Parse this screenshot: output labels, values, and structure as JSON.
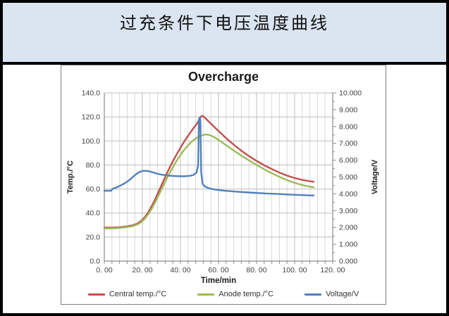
{
  "header": {
    "title": "过充条件下电压温度曲线"
  },
  "chart_data": {
    "type": "line",
    "title": "Overcharge",
    "legend_position": "bottom",
    "grid": {
      "horizontal_major": true,
      "vertical_major": true,
      "vertical_minor": true
    },
    "x_axis": {
      "label": "Time/min",
      "min": 0,
      "max": 120,
      "major_step": 20,
      "minor_step": 4,
      "tick_labels": [
        "0. 00",
        "20. 00",
        "40. 00",
        "60. 00",
        "80. 00",
        "100. 00",
        "120. 00"
      ]
    },
    "y_axis_left": {
      "label": "Temp./°C",
      "min": 0,
      "max": 140,
      "major_step": 20,
      "tick_labels": [
        "0.0",
        "20.0",
        "40.0",
        "60.0",
        "80.0",
        "100.0",
        "120.0",
        "140.0"
      ]
    },
    "y_axis_right": {
      "label": "Voltage/V",
      "min": 0,
      "max": 10,
      "major_step": 1,
      "minor_step": 0.5,
      "tick_labels": [
        "0.000",
        "1.000",
        "2.000",
        "3.000",
        "4.000",
        "5.000",
        "6.000",
        "7.000",
        "8.000",
        "9.000",
        "10.000"
      ]
    },
    "series": [
      {
        "name": "Central temp./°C",
        "axis": "left",
        "color": "#C0504D",
        "points": [
          [
            0,
            27.8
          ],
          [
            4,
            27.8
          ],
          [
            8,
            28.2
          ],
          [
            12,
            28.9
          ],
          [
            15,
            29.8
          ],
          [
            17,
            31
          ],
          [
            19,
            33
          ],
          [
            21,
            36
          ],
          [
            23,
            40.5
          ],
          [
            25,
            46
          ],
          [
            27,
            52.5
          ],
          [
            29,
            59.5
          ],
          [
            31,
            66.5
          ],
          [
            33,
            73.5
          ],
          [
            35,
            80
          ],
          [
            37,
            86
          ],
          [
            39,
            91.5
          ],
          [
            41,
            97
          ],
          [
            43,
            102
          ],
          [
            45,
            106.5
          ],
          [
            47,
            111
          ],
          [
            48.5,
            114
          ],
          [
            50,
            118
          ],
          [
            51,
            120.8
          ],
          [
            52,
            120.6
          ],
          [
            53.5,
            118.3
          ],
          [
            55,
            116
          ],
          [
            57,
            112.8
          ],
          [
            60,
            108.3
          ],
          [
            63,
            103.8
          ],
          [
            66,
            99.6
          ],
          [
            69,
            95.6
          ],
          [
            72,
            91.9
          ],
          [
            76,
            87.4
          ],
          [
            80,
            83.4
          ],
          [
            84,
            79.8
          ],
          [
            88,
            76.6
          ],
          [
            92,
            73.7
          ],
          [
            96,
            71.2
          ],
          [
            100,
            69.1
          ],
          [
            104,
            67.6
          ],
          [
            107,
            66.7
          ],
          [
            110,
            66
          ]
        ]
      },
      {
        "name": "Anode temp./°C",
        "axis": "left",
        "color": "#9BBB59",
        "points": [
          [
            0,
            27.2
          ],
          [
            4,
            27.2
          ],
          [
            8,
            27.6
          ],
          [
            12,
            28.3
          ],
          [
            15,
            29.1
          ],
          [
            17,
            30.2
          ],
          [
            19,
            32
          ],
          [
            21,
            34.8
          ],
          [
            23,
            38.8
          ],
          [
            25,
            43.8
          ],
          [
            27,
            49.8
          ],
          [
            29,
            56.3
          ],
          [
            31,
            62.8
          ],
          [
            33,
            69.3
          ],
          [
            35,
            75.3
          ],
          [
            37,
            80.9
          ],
          [
            39,
            86
          ],
          [
            41,
            90.6
          ],
          [
            43,
            94.6
          ],
          [
            45,
            98
          ],
          [
            47,
            100.9
          ],
          [
            49,
            103
          ],
          [
            51,
            104.5
          ],
          [
            53,
            105.4
          ],
          [
            55,
            105.1
          ],
          [
            57,
            103.8
          ],
          [
            59,
            101.9
          ],
          [
            62,
            98.7
          ],
          [
            65,
            95.3
          ],
          [
            68,
            92
          ],
          [
            72,
            87.8
          ],
          [
            76,
            83.8
          ],
          [
            80,
            80
          ],
          [
            84,
            76.4
          ],
          [
            88,
            73.1
          ],
          [
            92,
            70.1
          ],
          [
            96,
            67.4
          ],
          [
            100,
            65.1
          ],
          [
            104,
            63.3
          ],
          [
            107,
            62.2
          ],
          [
            110,
            61.4
          ]
        ]
      },
      {
        "name": "Voltage/V",
        "axis": "right",
        "color": "#4F81BD",
        "points": [
          [
            0,
            4.18
          ],
          [
            3.5,
            4.18
          ],
          [
            4.2,
            4.28
          ],
          [
            5,
            4.33
          ],
          [
            6.5,
            4.38
          ],
          [
            8,
            4.47
          ],
          [
            10,
            4.58
          ],
          [
            12,
            4.72
          ],
          [
            14,
            4.9
          ],
          [
            16,
            5.1
          ],
          [
            18,
            5.27
          ],
          [
            20,
            5.36
          ],
          [
            22,
            5.37
          ],
          [
            24,
            5.33
          ],
          [
            26,
            5.26
          ],
          [
            28,
            5.19
          ],
          [
            31,
            5.12
          ],
          [
            34,
            5.08
          ],
          [
            38,
            5.05
          ],
          [
            42,
            5.04
          ],
          [
            45,
            5.07
          ],
          [
            47,
            5.13
          ],
          [
            48.5,
            5.27
          ],
          [
            49.3,
            5.7
          ],
          [
            49.7,
            8.4
          ],
          [
            50.1,
            8.55
          ],
          [
            50.5,
            8.35
          ],
          [
            50.9,
            5.3
          ],
          [
            51.6,
            4.62
          ],
          [
            52.6,
            4.46
          ],
          [
            54,
            4.37
          ],
          [
            56,
            4.3
          ],
          [
            59,
            4.24
          ],
          [
            63,
            4.19
          ],
          [
            68,
            4.14
          ],
          [
            73,
            4.1
          ],
          [
            79,
            4.06
          ],
          [
            85,
            4.02
          ],
          [
            91,
            3.99
          ],
          [
            97,
            3.96
          ],
          [
            103,
            3.93
          ],
          [
            107,
            3.91
          ],
          [
            110,
            3.9
          ]
        ]
      }
    ],
    "colors": {
      "band_background": "#dbe5f1",
      "grid_major": "#bdbdbd",
      "grid_minor": "#d9d9d9",
      "axis_line": "#8c8c8c",
      "tick_text": "#3f3f3f"
    }
  }
}
